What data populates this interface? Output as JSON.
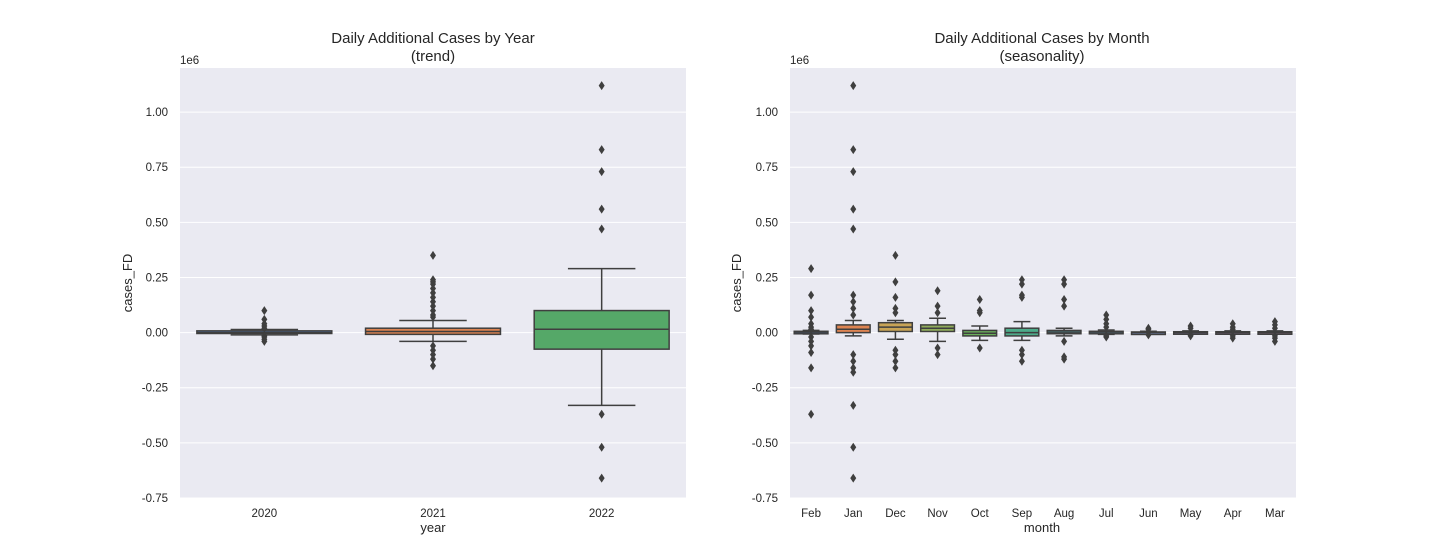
{
  "chart_data": [
    {
      "type": "box",
      "title": "Daily Additional Cases by Year",
      "subtitle": "(trend)",
      "xlabel": "year",
      "ylabel": "cases_FD",
      "y_offset_label": "1e6",
      "ylim": [
        -0.75,
        1.2
      ],
      "y_ticks": [
        "1.00",
        "0.75",
        "0.50",
        "0.25",
        "0.00",
        "-0.25",
        "-0.50",
        "-0.75"
      ],
      "y_tick_values": [
        1.0,
        0.75,
        0.5,
        0.25,
        0.0,
        -0.25,
        -0.5,
        -0.75
      ],
      "grid": true,
      "categories": [
        "2020",
        "2021",
        "2022"
      ],
      "boxes": [
        {
          "color": "#4c72b0",
          "q1": -0.004,
          "median": 0.0,
          "q3": 0.008,
          "whisker_low": -0.01,
          "whisker_high": 0.014,
          "outliers": [
            0.1,
            0.06,
            0.04,
            0.03,
            0.02,
            -0.015,
            -0.02,
            -0.03,
            -0.04
          ]
        },
        {
          "color": "#dd8452",
          "q1": -0.008,
          "median": 0.005,
          "q3": 0.02,
          "whisker_low": -0.04,
          "whisker_high": 0.055,
          "outliers": [
            0.35,
            0.24,
            0.23,
            0.22,
            0.2,
            0.18,
            0.16,
            0.14,
            0.12,
            0.1,
            0.08,
            0.07,
            -0.06,
            -0.08,
            -0.1,
            -0.12,
            -0.15
          ]
        },
        {
          "color": "#55a868",
          "q1": -0.075,
          "median": 0.015,
          "q3": 0.1,
          "whisker_low": -0.33,
          "whisker_high": 0.29,
          "outliers": [
            1.12,
            0.83,
            0.73,
            0.56,
            0.47,
            -0.37,
            -0.52,
            -0.66
          ]
        }
      ]
    },
    {
      "type": "box",
      "title": "Daily Additional Cases by Month",
      "subtitle": "(seasonality)",
      "xlabel": "month",
      "ylabel": "cases_FD",
      "y_offset_label": "1e6",
      "ylim": [
        -0.75,
        1.2
      ],
      "y_ticks": [
        "1.00",
        "0.75",
        "0.50",
        "0.25",
        "0.00",
        "-0.25",
        "-0.50",
        "-0.75"
      ],
      "y_tick_values": [
        1.0,
        0.75,
        0.5,
        0.25,
        0.0,
        -0.25,
        -0.5,
        -0.75
      ],
      "grid": true,
      "categories": [
        "Feb",
        "Jan",
        "Dec",
        "Nov",
        "Oct",
        "Sep",
        "Aug",
        "Jul",
        "Jun",
        "May",
        "Apr",
        "Mar"
      ],
      "boxes": [
        {
          "color": "#4c72b0",
          "q1": -0.002,
          "median": 0.002,
          "q3": 0.006,
          "whisker_low": -0.006,
          "whisker_high": 0.01,
          "outliers": [
            0.29,
            0.17,
            0.1,
            0.07,
            0.04,
            0.025,
            0.015,
            -0.02,
            -0.04,
            -0.06,
            -0.09,
            -0.16,
            -0.37
          ]
        },
        {
          "color": "#dd8452",
          "q1": 0.0,
          "median": 0.015,
          "q3": 0.035,
          "whisker_low": -0.015,
          "whisker_high": 0.055,
          "outliers": [
            1.12,
            0.83,
            0.73,
            0.56,
            0.47,
            0.17,
            0.14,
            0.11,
            0.08,
            -0.1,
            -0.13,
            -0.16,
            -0.18,
            -0.33,
            -0.52,
            -0.66
          ]
        },
        {
          "color": "#c8a456",
          "q1": 0.005,
          "median": 0.025,
          "q3": 0.045,
          "whisker_low": -0.03,
          "whisker_high": 0.055,
          "outliers": [
            0.35,
            0.23,
            0.16,
            0.11,
            0.09,
            -0.08,
            -0.1,
            -0.13,
            -0.16
          ]
        },
        {
          "color": "#8fab5a",
          "q1": 0.005,
          "median": 0.02,
          "q3": 0.035,
          "whisker_low": -0.04,
          "whisker_high": 0.065,
          "outliers": [
            0.19,
            0.12,
            0.09,
            -0.07,
            -0.1
          ]
        },
        {
          "color": "#6aaf5a",
          "q1": -0.015,
          "median": -0.003,
          "q3": 0.01,
          "whisker_low": -0.035,
          "whisker_high": 0.03,
          "outliers": [
            0.15,
            0.1,
            0.09,
            -0.07
          ]
        },
        {
          "color": "#4dab8a",
          "q1": -0.015,
          "median": 0.0,
          "q3": 0.02,
          "whisker_low": -0.035,
          "whisker_high": 0.05,
          "outliers": [
            0.24,
            0.22,
            0.17,
            0.16,
            -0.08,
            -0.1,
            -0.13
          ]
        },
        {
          "color": "#4ea3ae",
          "q1": -0.005,
          "median": 0.002,
          "q3": 0.01,
          "whisker_low": -0.015,
          "whisker_high": 0.02,
          "outliers": [
            0.24,
            0.22,
            0.15,
            0.12,
            -0.04,
            -0.11,
            -0.12
          ]
        },
        {
          "color": "#55a1c8",
          "q1": -0.003,
          "median": 0.002,
          "q3": 0.006,
          "whisker_low": -0.008,
          "whisker_high": 0.012,
          "outliers": [
            0.08,
            0.06,
            0.04,
            0.025,
            -0.015,
            -0.02
          ]
        },
        {
          "color": "#7f99d4",
          "q1": -0.003,
          "median": 0.0,
          "q3": 0.003,
          "whisker_low": -0.006,
          "whisker_high": 0.006,
          "outliers": [
            0.02,
            0.015,
            -0.01
          ]
        },
        {
          "color": "#a48bd6",
          "q1": -0.003,
          "median": 0.0,
          "q3": 0.004,
          "whisker_low": -0.007,
          "whisker_high": 0.008,
          "outliers": [
            0.03,
            0.02,
            -0.01,
            -0.015
          ]
        },
        {
          "color": "#c487d0",
          "q1": -0.003,
          "median": 0.0,
          "q3": 0.004,
          "whisker_low": -0.007,
          "whisker_high": 0.008,
          "outliers": [
            0.04,
            0.025,
            0.015,
            -0.015,
            -0.025
          ]
        },
        {
          "color": "#d58dbc",
          "q1": -0.003,
          "median": 0.0,
          "q3": 0.004,
          "whisker_low": -0.007,
          "whisker_high": 0.008,
          "outliers": [
            0.05,
            0.035,
            0.02,
            -0.015,
            -0.025,
            -0.04
          ]
        }
      ]
    }
  ]
}
